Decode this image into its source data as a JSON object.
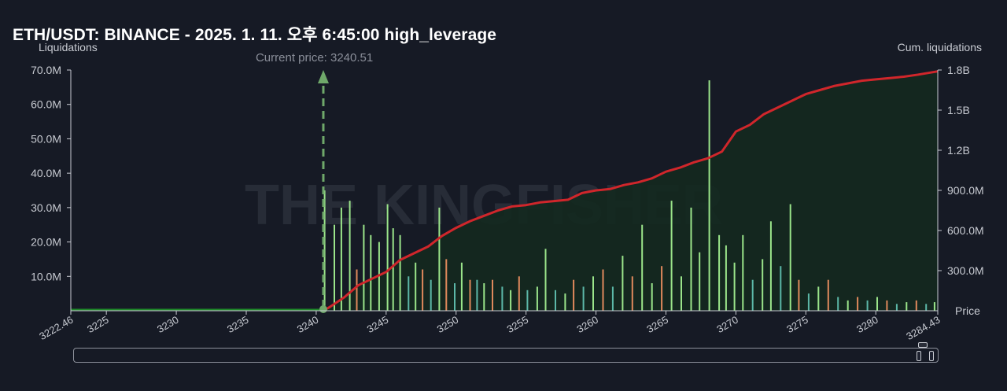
{
  "header": {
    "title": "ETH/USDT: BINANCE - 2025. 1. 11. 오후 6:45:00 high_leverage"
  },
  "colors": {
    "background": "#161a25",
    "cumulative_line": "#d0262b",
    "cumulative_fill": "#14291f",
    "flat_line": "#1f8a2a",
    "bar_green": "#9be58a",
    "bar_orange": "#e0895c",
    "bar_teal": "#5cb8a8",
    "current_price_marker": "#6fa86a"
  },
  "watermark": {
    "text": "THE KINGFISHER"
  },
  "chart_data": {
    "type": "bar",
    "title": "ETH/USDT: BINANCE - 2025. 1. 11. 오후 6:45:00 high_leverage",
    "ylabel": "Liquidations",
    "y2label": "Cum. liquidations",
    "xlabel": "Price",
    "xlim": [
      3222.46,
      3284.43
    ],
    "ylim": [
      0,
      70000000
    ],
    "y2lim": [
      0,
      1800000000
    ],
    "x_tick_labels": [
      "3222.46",
      "3225",
      "3230",
      "3235",
      "3240",
      "3245",
      "3250",
      "3255",
      "3260",
      "3265",
      "3270",
      "3275",
      "3280",
      "3284.43"
    ],
    "y_tick_labels": [
      "70.0M",
      "60.0M",
      "50.0M",
      "40.0M",
      "30.0M",
      "20.0M",
      "10.0M"
    ],
    "y2_tick_labels": [
      "1.8B",
      "1.5B",
      "1.2B",
      "900.0M",
      "600.0M",
      "300.0M"
    ],
    "current_price": {
      "label": "Current price: 3240.51",
      "value": 3240.51
    },
    "grid": false,
    "series": [
      {
        "name": "Liquidations",
        "type": "bar",
        "x": [
          3240.6,
          3241.3,
          3241.8,
          3242.4,
          3242.9,
          3243.4,
          3243.9,
          3244.5,
          3245.1,
          3245.5,
          3246.0,
          3246.6,
          3247.1,
          3247.6,
          3248.2,
          3248.8,
          3249.3,
          3249.9,
          3250.4,
          3251.0,
          3251.5,
          3252.0,
          3252.6,
          3253.3,
          3253.9,
          3254.5,
          3255.1,
          3255.8,
          3256.4,
          3257.1,
          3257.8,
          3258.4,
          3259.1,
          3259.8,
          3260.5,
          3261.2,
          3261.9,
          3262.6,
          3263.3,
          3264.0,
          3264.7,
          3265.4,
          3266.1,
          3266.8,
          3267.4,
          3268.1,
          3268.8,
          3269.3,
          3269.9,
          3270.5,
          3271.2,
          3271.9,
          3272.5,
          3273.2,
          3273.9,
          3274.5,
          3275.2,
          3275.9,
          3276.6,
          3277.3,
          3278.0,
          3278.7,
          3279.4,
          3280.1,
          3280.8,
          3281.5,
          3282.2,
          3282.9,
          3283.6,
          3284.2
        ],
        "values": [
          35000000,
          25000000,
          30000000,
          32000000,
          12000000,
          25000000,
          22000000,
          20000000,
          31000000,
          24000000,
          22000000,
          10000000,
          14000000,
          12000000,
          9000000,
          30000000,
          15000000,
          8000000,
          14000000,
          9000000,
          9000000,
          8000000,
          9000000,
          7000000,
          6000000,
          10000000,
          6000000,
          7000000,
          18000000,
          6000000,
          5000000,
          9000000,
          7000000,
          10000000,
          12000000,
          7000000,
          16000000,
          10000000,
          25000000,
          8000000,
          13000000,
          32000000,
          10000000,
          30000000,
          17000000,
          67000000,
          22000000,
          19000000,
          14000000,
          22000000,
          9000000,
          15000000,
          26000000,
          13000000,
          31000000,
          9000000,
          5000000,
          7000000,
          9000000,
          4000000,
          3000000,
          4000000,
          3000000,
          4000000,
          3000000,
          2000000,
          2500000,
          3000000,
          2000000,
          2500000
        ]
      },
      {
        "name": "Cum. liquidations",
        "type": "line",
        "x": [
          3222.46,
          3240.51,
          3241.0,
          3242.0,
          3243.0,
          3244.0,
          3245.0,
          3246.0,
          3247.0,
          3248.0,
          3249.0,
          3250.0,
          3251.0,
          3252.0,
          3253.0,
          3254.0,
          3255.0,
          3256.0,
          3257.0,
          3258.0,
          3259.0,
          3260.0,
          3261.0,
          3262.0,
          3263.0,
          3264.0,
          3265.0,
          3266.0,
          3267.0,
          3268.0,
          3269.0,
          3270.0,
          3271.0,
          3272.0,
          3273.0,
          3274.0,
          3275.0,
          3276.0,
          3277.0,
          3278.0,
          3279.0,
          3280.0,
          3281.0,
          3282.0,
          3283.0,
          3284.43
        ],
        "values": [
          0,
          0,
          30000000,
          100000000,
          190000000,
          240000000,
          290000000,
          380000000,
          430000000,
          480000000,
          560000000,
          620000000,
          670000000,
          710000000,
          750000000,
          780000000,
          790000000,
          810000000,
          820000000,
          830000000,
          880000000,
          900000000,
          910000000,
          940000000,
          960000000,
          990000000,
          1040000000,
          1070000000,
          1110000000,
          1140000000,
          1190000000,
          1340000000,
          1390000000,
          1470000000,
          1520000000,
          1570000000,
          1620000000,
          1650000000,
          1680000000,
          1700000000,
          1720000000,
          1730000000,
          1740000000,
          1750000000,
          1765000000,
          1790000000
        ]
      }
    ]
  }
}
